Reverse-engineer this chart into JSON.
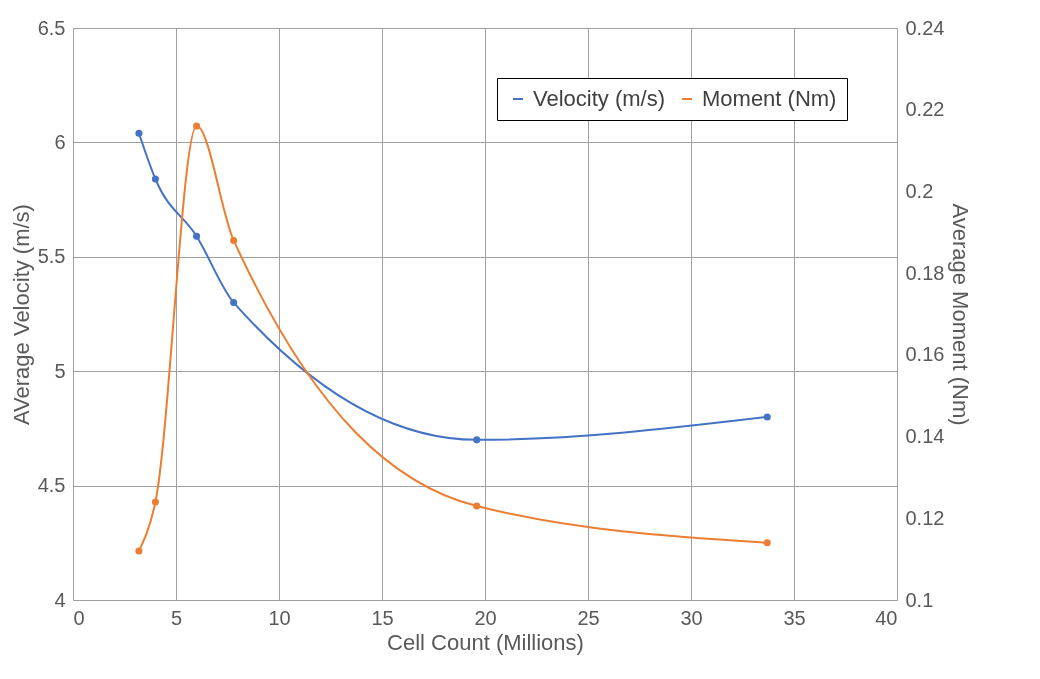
{
  "chart_data": {
    "type": "line",
    "xlabel": "Cell Count (Millions)",
    "ylabel": "AVerage Velocity (m/s)",
    "y2label": "Average Moment (Nm)",
    "xlim": [
      0,
      40
    ],
    "xticks": [
      0,
      5,
      10,
      15,
      20,
      25,
      30,
      35,
      40
    ],
    "ylim": [
      4,
      6.5
    ],
    "yticks": [
      4,
      4.5,
      5,
      5.5,
      6,
      6.5
    ],
    "y2lim": [
      0.1,
      0.24
    ],
    "y2ticks": [
      0.1,
      0.12,
      0.14,
      0.16,
      0.18,
      0.2,
      0.22,
      0.24
    ],
    "grid": true,
    "legend": "top right",
    "marker": "circle",
    "series": [
      {
        "name": "Velocity (m/s)",
        "color": "#4472c4",
        "x": [
          3.2,
          4.0,
          6.0,
          7.8,
          19.6,
          33.7
        ],
        "values": [
          6.04,
          5.84,
          5.59,
          5.3,
          4.7,
          4.8
        ]
      },
      {
        "name": "Moment (Nm)",
        "color": "#ed7d31",
        "axis": "y2",
        "x": [
          3.2,
          4.0,
          6.0,
          7.8,
          19.6,
          33.7
        ],
        "values": [
          0.112,
          0.124,
          0.216,
          0.188,
          0.123,
          0.114
        ]
      }
    ]
  }
}
